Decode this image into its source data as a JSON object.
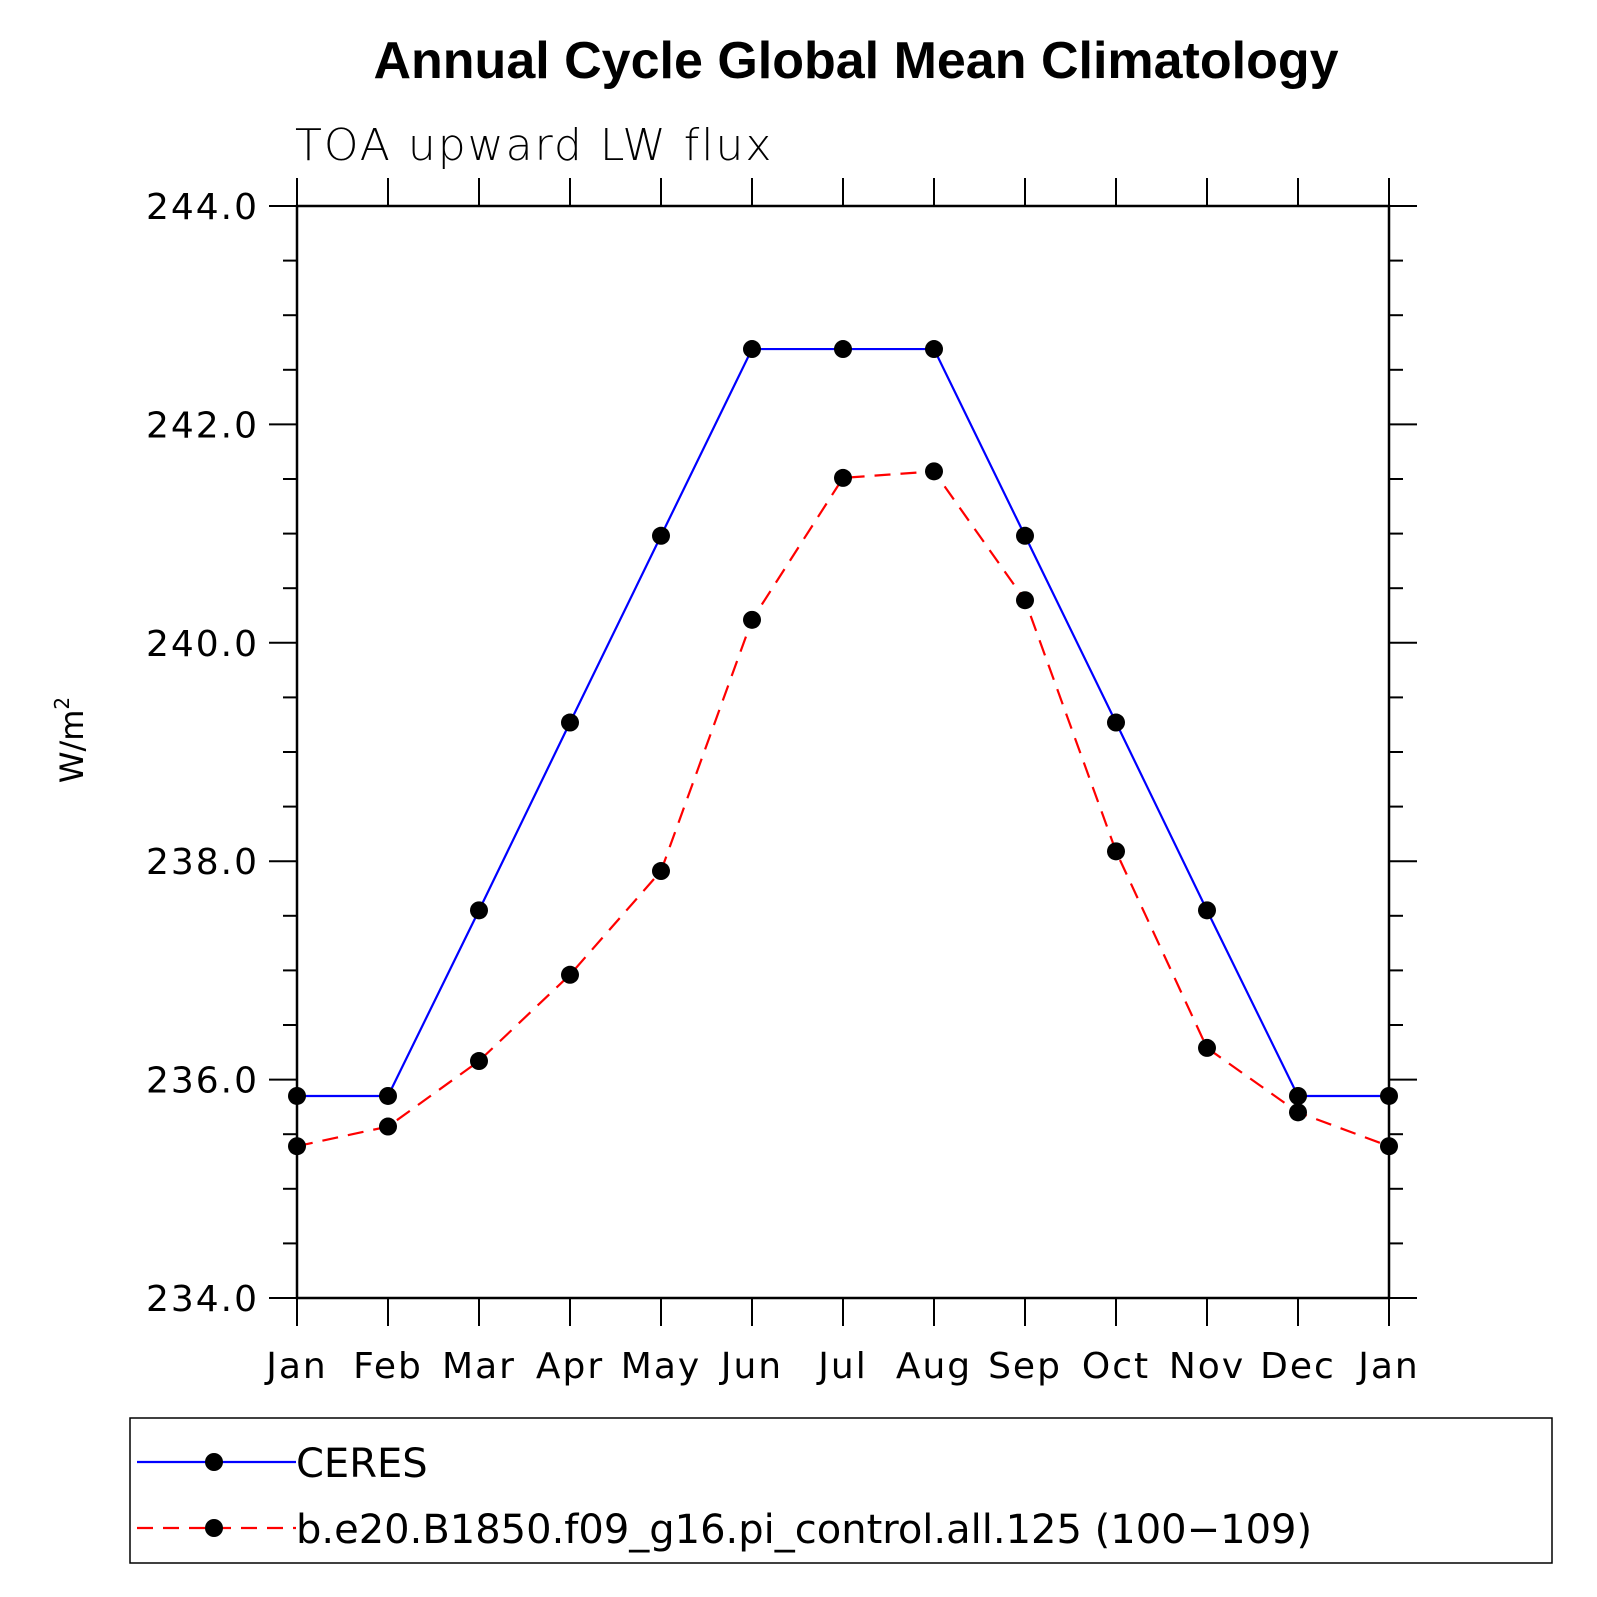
{
  "chart_data": {
    "type": "line",
    "title": "Annual Cycle Global Mean Climatology",
    "subtitle": "TOA upward LW flux",
    "ylabel": "W/m",
    "ylabel_superscript": "2",
    "categories": [
      "Jan",
      "Feb",
      "Mar",
      "Apr",
      "May",
      "Jun",
      "Jul",
      "Aug",
      "Sep",
      "Oct",
      "Nov",
      "Dec",
      "Jan"
    ],
    "ylim": [
      234.0,
      244.0
    ],
    "yticks": [
      "234.0",
      "236.0",
      "238.0",
      "240.0",
      "242.0",
      "244.0"
    ],
    "grid": false,
    "legend_position": "bottom",
    "series": [
      {
        "name": "CERES",
        "color": "#0000ff",
        "dash": "solid",
        "values": [
          235.85,
          235.85,
          237.55,
          239.27,
          240.98,
          242.69,
          242.69,
          242.69,
          240.98,
          239.27,
          237.55,
          235.85,
          235.85
        ]
      },
      {
        "name": "b.e20.B1850.f09_g16.pi_control.all.125 (100−109)",
        "color": "#ff0000",
        "dash": "dashed",
        "values": [
          235.39,
          235.57,
          236.17,
          236.96,
          237.91,
          240.21,
          241.51,
          241.57,
          240.39,
          238.09,
          236.29,
          235.7,
          235.39
        ]
      }
    ]
  }
}
